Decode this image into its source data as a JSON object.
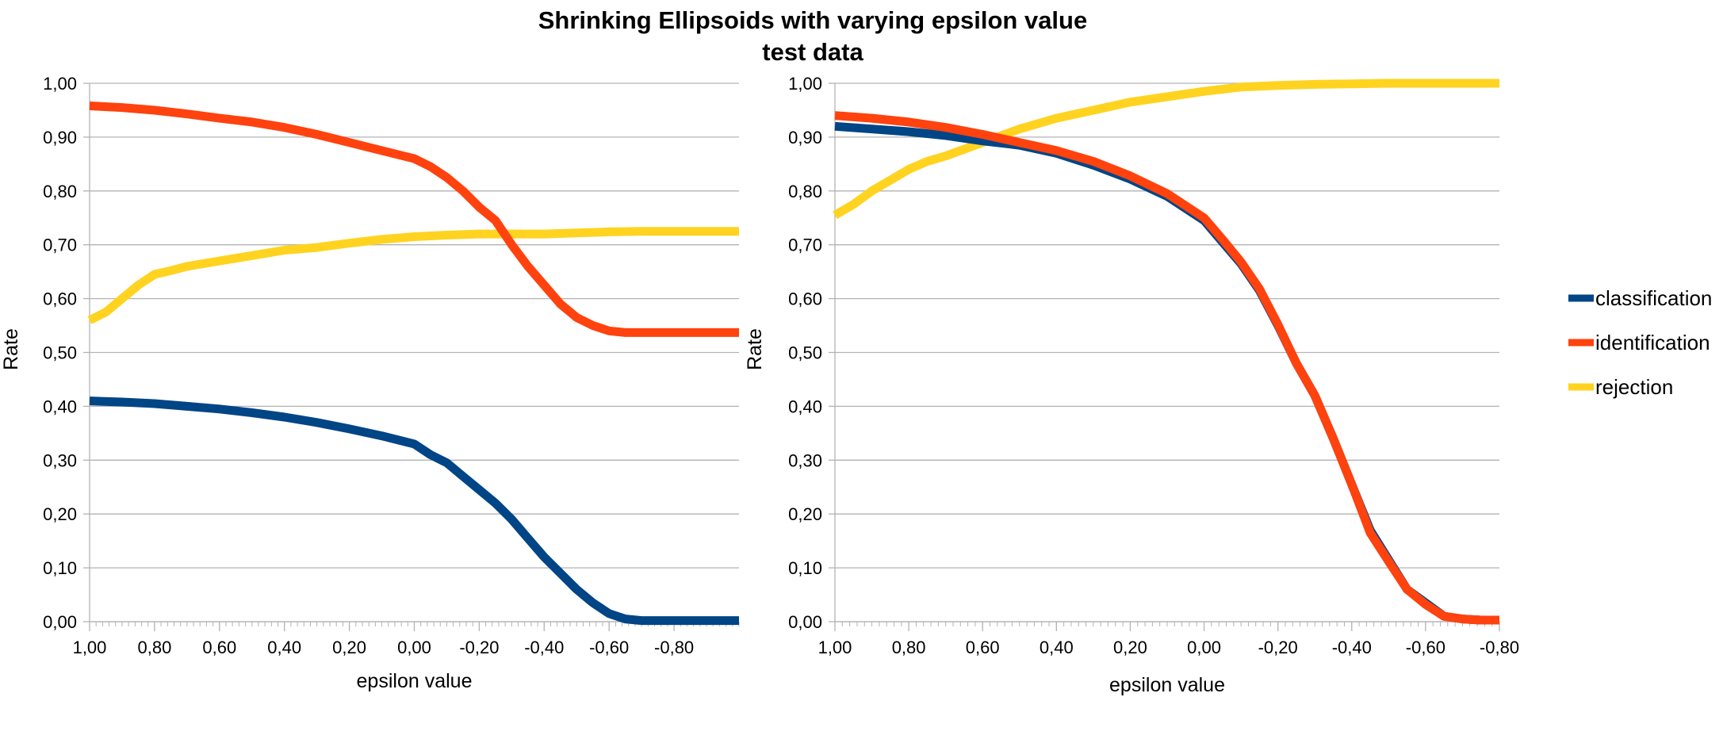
{
  "title": "Shrinking Ellipsoids with varying epsilon value",
  "subtitle": "test data",
  "legend": {
    "placement": "right",
    "items": [
      {
        "label": "classification",
        "color": "#004586"
      },
      {
        "label": "identification",
        "color": "#FF420E"
      },
      {
        "label": "rejection",
        "color": "#FFD320"
      }
    ]
  },
  "chart_data": [
    {
      "type": "line",
      "xlabel": "epsilon value",
      "ylabel": "Rate",
      "xlim": [
        1.0,
        -1.0
      ],
      "ylim": [
        0,
        1
      ],
      "x_ticks": [
        "1,00",
        "0,80",
        "0,60",
        "0,40",
        "0,20",
        "0,00",
        "-0,20",
        "-0,40",
        "-0,60",
        "-0,80"
      ],
      "y_ticks": [
        "0,00",
        "0,10",
        "0,20",
        "0,30",
        "0,40",
        "0,50",
        "0,60",
        "0,70",
        "0,80",
        "0,90",
        "1,00"
      ],
      "grid": true,
      "series": [
        {
          "name": "classification",
          "color": "#004586",
          "x": [
            1.0,
            0.9,
            0.8,
            0.7,
            0.6,
            0.5,
            0.4,
            0.3,
            0.2,
            0.1,
            0.0,
            -0.05,
            -0.1,
            -0.15,
            -0.2,
            -0.25,
            -0.3,
            -0.35,
            -0.4,
            -0.45,
            -0.5,
            -0.55,
            -0.6,
            -0.65,
            -0.7,
            -0.75,
            -0.8,
            -0.9,
            -1.0
          ],
          "values": [
            0.41,
            0.408,
            0.405,
            0.4,
            0.395,
            0.388,
            0.38,
            0.37,
            0.358,
            0.345,
            0.33,
            0.31,
            0.295,
            0.27,
            0.245,
            0.22,
            0.19,
            0.155,
            0.12,
            0.09,
            0.06,
            0.035,
            0.015,
            0.005,
            0.002,
            0.002,
            0.002,
            0.002,
            0.002
          ]
        },
        {
          "name": "identification",
          "color": "#FF420E",
          "x": [
            1.0,
            0.9,
            0.8,
            0.7,
            0.6,
            0.5,
            0.4,
            0.3,
            0.2,
            0.1,
            0.0,
            -0.05,
            -0.1,
            -0.15,
            -0.2,
            -0.25,
            -0.3,
            -0.35,
            -0.4,
            -0.45,
            -0.5,
            -0.55,
            -0.6,
            -0.65,
            -0.7,
            -0.75,
            -0.8,
            -0.9,
            -1.0
          ],
          "values": [
            0.958,
            0.955,
            0.95,
            0.943,
            0.935,
            0.928,
            0.918,
            0.905,
            0.89,
            0.875,
            0.86,
            0.845,
            0.825,
            0.8,
            0.77,
            0.745,
            0.7,
            0.66,
            0.625,
            0.59,
            0.565,
            0.55,
            0.54,
            0.537,
            0.537,
            0.537,
            0.537,
            0.537,
            0.537
          ]
        },
        {
          "name": "rejection",
          "color": "#FFD320",
          "x": [
            1.0,
            0.95,
            0.9,
            0.85,
            0.8,
            0.75,
            0.7,
            0.6,
            0.5,
            0.4,
            0.3,
            0.2,
            0.1,
            0.0,
            -0.1,
            -0.2,
            -0.3,
            -0.4,
            -0.5,
            -0.6,
            -0.7,
            -0.8,
            -0.9,
            -1.0
          ],
          "values": [
            0.56,
            0.575,
            0.6,
            0.625,
            0.645,
            0.652,
            0.66,
            0.67,
            0.68,
            0.69,
            0.695,
            0.703,
            0.71,
            0.715,
            0.718,
            0.72,
            0.72,
            0.72,
            0.722,
            0.724,
            0.725,
            0.725,
            0.725,
            0.725
          ]
        }
      ]
    },
    {
      "type": "line",
      "xlabel": "epsilon value",
      "ylabel": "Rate",
      "xlim": [
        1.0,
        -0.8
      ],
      "ylim": [
        0,
        1
      ],
      "x_ticks": [
        "1,00",
        "0,80",
        "0,60",
        "0,40",
        "0,20",
        "0,00",
        "-0,20",
        "-0,40",
        "-0,60",
        "-0,80"
      ],
      "y_ticks": [
        "0,00",
        "0,10",
        "0,20",
        "0,30",
        "0,40",
        "0,50",
        "0,60",
        "0,70",
        "0,80",
        "0,90",
        "1,00"
      ],
      "grid": true,
      "series": [
        {
          "name": "classification",
          "color": "#004586",
          "x": [
            1.0,
            0.9,
            0.8,
            0.7,
            0.6,
            0.5,
            0.4,
            0.3,
            0.2,
            0.1,
            0.0,
            -0.05,
            -0.1,
            -0.15,
            -0.2,
            -0.25,
            -0.3,
            -0.35,
            -0.4,
            -0.45,
            -0.5,
            -0.55,
            -0.6,
            -0.65,
            -0.7,
            -0.75,
            -0.8
          ],
          "values": [
            0.92,
            0.915,
            0.91,
            0.903,
            0.893,
            0.885,
            0.87,
            0.848,
            0.822,
            0.79,
            0.745,
            0.705,
            0.665,
            0.615,
            0.55,
            0.48,
            0.42,
            0.34,
            0.255,
            0.17,
            0.115,
            0.06,
            0.035,
            0.01,
            0.005,
            0.003,
            0.003
          ]
        },
        {
          "name": "identification",
          "color": "#FF420E",
          "x": [
            1.0,
            0.9,
            0.8,
            0.7,
            0.6,
            0.5,
            0.4,
            0.3,
            0.2,
            0.1,
            0.0,
            -0.05,
            -0.1,
            -0.15,
            -0.2,
            -0.25,
            -0.3,
            -0.35,
            -0.4,
            -0.45,
            -0.5,
            -0.55,
            -0.6,
            -0.65,
            -0.7,
            -0.75,
            -0.8
          ],
          "values": [
            0.94,
            0.935,
            0.928,
            0.918,
            0.905,
            0.89,
            0.875,
            0.855,
            0.828,
            0.795,
            0.75,
            0.71,
            0.668,
            0.618,
            0.552,
            0.48,
            0.42,
            0.34,
            0.255,
            0.165,
            0.112,
            0.06,
            0.032,
            0.01,
            0.005,
            0.003,
            0.003
          ]
        },
        {
          "name": "rejection",
          "color": "#FFD320",
          "x": [
            1.0,
            0.95,
            0.9,
            0.85,
            0.8,
            0.75,
            0.7,
            0.6,
            0.5,
            0.4,
            0.3,
            0.2,
            0.1,
            0.0,
            -0.1,
            -0.2,
            -0.3,
            -0.4,
            -0.5,
            -0.6,
            -0.7,
            -0.8
          ],
          "values": [
            0.755,
            0.775,
            0.8,
            0.82,
            0.84,
            0.855,
            0.865,
            0.89,
            0.915,
            0.935,
            0.95,
            0.965,
            0.975,
            0.985,
            0.993,
            0.996,
            0.998,
            0.999,
            1.0,
            1.0,
            1.0,
            1.0
          ]
        }
      ]
    }
  ]
}
